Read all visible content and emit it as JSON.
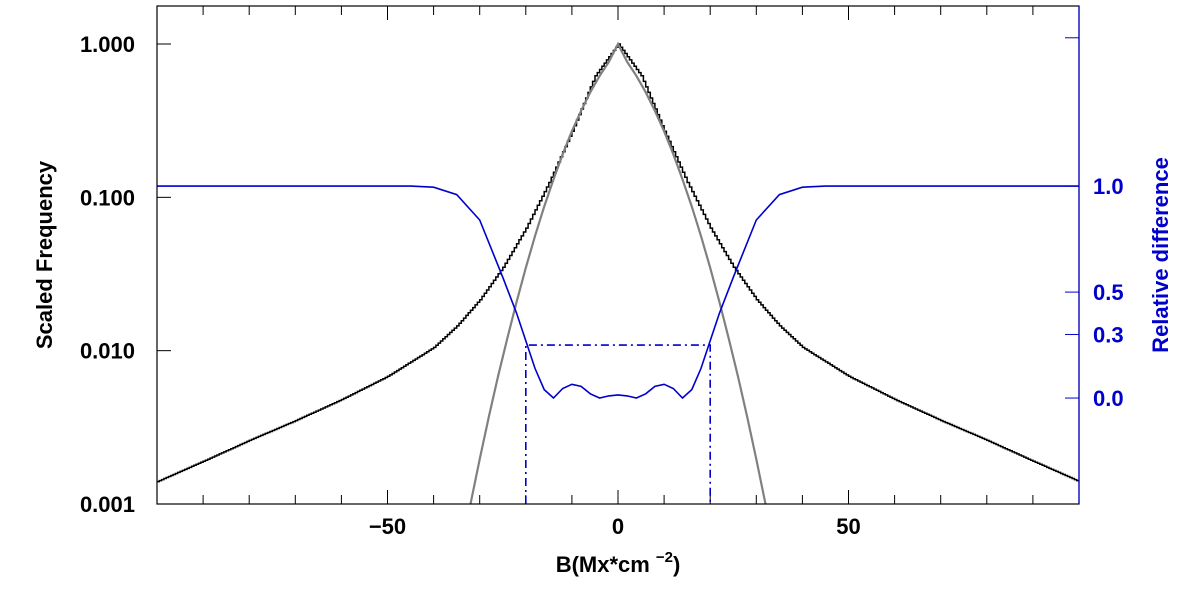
{
  "chart_data": {
    "type": "line",
    "title": "",
    "xlabel": {
      "main": "B(Mx*cm",
      "sup": "−2",
      "close": ")"
    },
    "ylabel_left": "Scaled Frequency",
    "ylabel_right": "Relative difference",
    "xlim": [
      -100,
      100
    ],
    "xticks": [
      -50,
      0,
      50
    ],
    "xtick_labels": [
      "−50",
      "0",
      "50"
    ],
    "ylim_left": [
      0.001,
      1.0
    ],
    "yscale_left": "log",
    "yticks_left": [
      0.001,
      0.01,
      0.1,
      1.0
    ],
    "ytick_labels_left": [
      "0.001",
      "0.010",
      "0.100",
      "1.000"
    ],
    "ylim_right": [
      -0.5,
      1.85
    ],
    "yticks_right": [
      0.0,
      0.3,
      0.5,
      1.0
    ],
    "ytick_labels_right": [
      "0.0",
      "0.3",
      "0.5",
      "1.0"
    ],
    "colors": {
      "histogram": "#000000",
      "gaussian": "#808080",
      "difference": "#0000cc",
      "axis_right": "#0000cc"
    },
    "series": [
      {
        "axis": "left",
        "style": "step",
        "x": [
          -100,
          -90,
          -80,
          -70,
          -60,
          -50,
          -40,
          -35,
          -30,
          -25,
          -20,
          -15,
          -10,
          -5,
          0,
          5,
          10,
          15,
          20,
          25,
          30,
          35,
          40,
          50,
          60,
          70,
          80,
          90,
          100
        ],
        "y": [
          0.0014,
          0.0019,
          0.0026,
          0.0035,
          0.0048,
          0.0068,
          0.0105,
          0.0145,
          0.0215,
          0.035,
          0.063,
          0.125,
          0.27,
          0.62,
          1.0,
          0.62,
          0.27,
          0.125,
          0.063,
          0.035,
          0.0215,
          0.0145,
          0.0105,
          0.0068,
          0.0048,
          0.0035,
          0.0026,
          0.0019,
          0.0014
        ]
      },
      {
        "axis": "left",
        "style": "line",
        "x": [
          -32,
          -30,
          -28,
          -26,
          -24,
          -22,
          -20,
          -18,
          -16,
          -14,
          -12,
          -10,
          -8,
          -6,
          -4,
          -2,
          0,
          2,
          4,
          6,
          8,
          10,
          12,
          14,
          16,
          18,
          20,
          22,
          24,
          26,
          28,
          30,
          32
        ],
        "y": [
          0.001,
          0.00196,
          0.00372,
          0.00683,
          0.0121,
          0.0208,
          0.0347,
          0.0559,
          0.087,
          0.131,
          0.191,
          0.27,
          0.367,
          0.485,
          0.619,
          0.763,
          1.0,
          0.763,
          0.619,
          0.485,
          0.367,
          0.27,
          0.191,
          0.131,
          0.087,
          0.0559,
          0.0347,
          0.0208,
          0.0121,
          0.00683,
          0.00372,
          0.00196,
          0.001
        ]
      },
      {
        "axis": "right",
        "style": "line",
        "x": [
          -100,
          -45,
          -40,
          -35,
          -30,
          -25,
          -22,
          -20,
          -18,
          -16,
          -14,
          -12,
          -10,
          -8,
          -6,
          -4,
          -2,
          0,
          2,
          4,
          6,
          8,
          10,
          12,
          14,
          16,
          18,
          20,
          22,
          25,
          30,
          35,
          40,
          45,
          100
        ],
        "y": [
          1.0,
          1.0,
          0.995,
          0.96,
          0.84,
          0.57,
          0.4,
          0.27,
          0.14,
          0.04,
          0.0,
          0.045,
          0.065,
          0.055,
          0.02,
          0.0,
          0.01,
          0.015,
          0.01,
          0.0,
          0.02,
          0.055,
          0.065,
          0.045,
          0.0,
          0.04,
          0.14,
          0.27,
          0.4,
          0.57,
          0.84,
          0.96,
          0.995,
          1.0,
          1.0
        ]
      },
      {
        "axis": "right",
        "style": "dashdot",
        "x": [
          -20,
          -20,
          20,
          20
        ],
        "y": [
          -0.5,
          0.25,
          0.25,
          -0.5
        ]
      }
    ],
    "grid": false,
    "legend": "none"
  }
}
